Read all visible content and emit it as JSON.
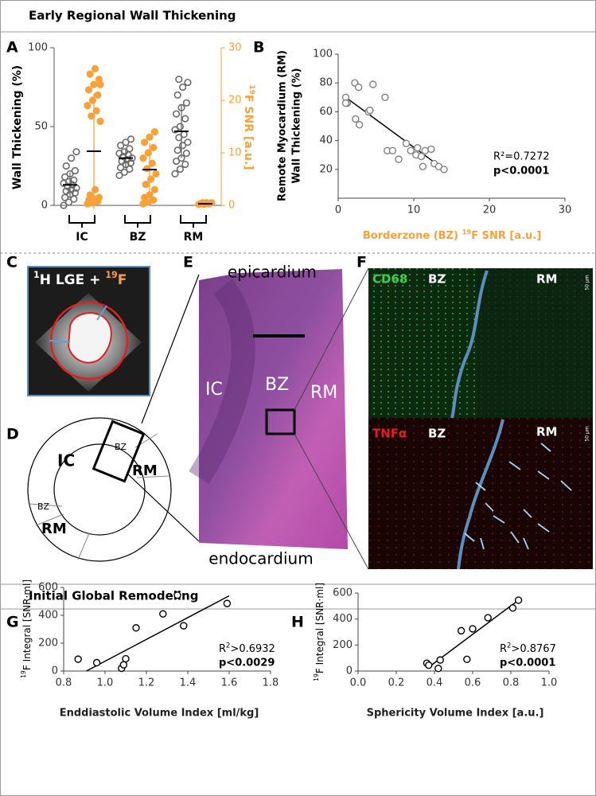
{
  "sections": [
    "Early Regional Wall Thickening",
    "Initial Global Remodeling"
  ],
  "panel_letters": [
    "A",
    "B",
    "C",
    "D",
    "E",
    "F",
    "G",
    "H"
  ],
  "image_c": {
    "label": [
      "1",
      "H LGE + ",
      "19",
      "F"
    ]
  },
  "diagram_d": {
    "labels": [
      "IC",
      "BZ",
      "RM",
      "BZ",
      "RM"
    ]
  },
  "histology_e": {
    "top": "epicardium",
    "bottom": "endocardium",
    "regions": [
      "IC",
      "BZ",
      "RM"
    ]
  },
  "stains_f": {
    "top": {
      "stain": "CD68",
      "left": "BZ",
      "right": "RM",
      "scale": "50 µm"
    },
    "bottom": {
      "stain": "TNFα",
      "left": "BZ",
      "right": "RM",
      "scale": "50 µm"
    }
  },
  "chart_data": [
    {
      "type": "strip",
      "categories": [
        "IC",
        "BZ",
        "RM"
      ],
      "ylabel": "Wall Thickening (%)",
      "y2label": [
        "19",
        "F SNR [a.u.]"
      ],
      "ylim": [
        0,
        100
      ],
      "yticks": [
        0,
        50,
        100
      ],
      "y2lim": [
        0,
        30
      ],
      "y2ticks": [
        0,
        10,
        20,
        30
      ],
      "series": [
        {
          "color": "#6b6b6b",
          "values": [
            [
              0,
              2,
              4,
              5,
              7,
              8,
              9,
              10,
              11,
              12,
              13,
              14,
              15,
              16,
              18,
              20,
              22,
              25,
              30,
              34
            ],
            [
              19,
              21,
              23,
              24,
              26,
              27,
              28,
              29,
              30,
              31,
              32,
              33,
              34,
              36,
              38,
              40,
              42
            ],
            [
              20,
              23,
              26,
              28,
              30,
              33,
              35,
              38,
              40,
              43,
              45,
              48,
              50,
              55,
              58,
              62,
              65,
              70,
              75,
              78,
              80
            ]
          ],
          "means": [
            13,
            30,
            47
          ],
          "sd": [
            8,
            6,
            17
          ]
        },
        {
          "color": "#f7a13a",
          "axis": "y2",
          "values": [
            [
              0.3,
              0.5,
              0.8,
              1,
              1.2,
              1.5,
              2,
              3,
              16,
              17,
              18,
              19,
              20,
              21,
              22,
              23,
              24,
              25,
              26,
              23
            ],
            [
              0.3,
              0.6,
              1,
              1.5,
              2,
              3,
              4,
              5,
              6,
              7,
              8,
              9,
              10,
              11,
              12,
              13,
              14
            ],
            [
              0.2,
              0.2,
              0.3,
              0.3,
              0.3,
              0.4,
              0.4,
              0.5,
              0.5,
              0.5
            ]
          ],
          "means": [
            10.3,
            6.8,
            0.3
          ],
          "sd": [
            11,
            5,
            0.2
          ]
        }
      ]
    },
    {
      "type": "scatter",
      "ylabel_lines": [
        "Remote Myocardium (RM)",
        "Wall Thickening (%)"
      ],
      "xlabel": [
        "Borderzone (BZ) ",
        "19",
        "F SNR  [a.u.]"
      ],
      "x": [
        1,
        1.2,
        1,
        2.2,
        2.3,
        2.8,
        2.7,
        4,
        4.6,
        4.2,
        6.2,
        6.5,
        7.2,
        8,
        9,
        9.6,
        10.3,
        10.5,
        11,
        11.2,
        11.5,
        12.3,
        12.7,
        13.3,
        14
      ],
      "values": [
        70,
        66,
        66,
        80,
        55,
        51,
        77,
        60,
        79,
        61,
        70,
        33,
        33,
        27,
        38,
        33,
        30,
        35,
        29,
        22,
        33,
        34,
        24,
        22,
        20
      ],
      "color": "#808080",
      "xlim": [
        0,
        30
      ],
      "xticks": [
        0,
        10,
        20,
        30
      ],
      "ylim": [
        0,
        100
      ],
      "yticks": [
        20,
        40,
        60,
        80,
        100
      ],
      "trendline": {
        "x": [
          1,
          14
        ],
        "y": [
          70,
          20
        ]
      },
      "annotations": [
        "R²=0.7272",
        "p<0.0001"
      ]
    },
    {
      "type": "scatter",
      "ylabel": [
        "19",
        "F Integral [SNR·ml]"
      ],
      "xlabel": "Enddiastolic  Volume Index [ml/kg]",
      "x": [
        0.87,
        0.96,
        1.08,
        1.09,
        1.1,
        1.15,
        1.28,
        1.35,
        1.38,
        1.59
      ],
      "values": [
        85,
        60,
        20,
        45,
        88,
        310,
        410,
        545,
        325,
        485
      ],
      "color": "#000000",
      "xlim": [
        0.8,
        1.8
      ],
      "xticks": [
        0.8,
        {
          "value": 1,
          "label": "1.0"
        },
        1.2,
        1.4,
        1.6,
        1.8
      ],
      "ylim": [
        0,
        600
      ],
      "yticks": [
        0,
        200,
        400,
        600
      ],
      "trendline": {
        "x": [
          0.91,
          1.6
        ],
        "y": [
          0,
          540
        ]
      },
      "annotations": [
        [
          "R",
          "2",
          ">0.6932"
        ],
        "p<0.0029"
      ]
    },
    {
      "type": "scatter",
      "ylabel": [
        "19",
        "F Integral [SNR·ml]"
      ],
      "xlabel": "Sphericity Volume Index [a.u.]",
      "x": [
        0.36,
        0.37,
        0.42,
        0.43,
        0.54,
        0.57,
        0.6,
        0.68,
        0.81,
        0.84
      ],
      "values": [
        60,
        45,
        20,
        85,
        310,
        90,
        325,
        410,
        485,
        545
      ],
      "color": "#000000",
      "xlim": [
        0,
        1
      ],
      "xticks": [
        {
          "value": 0,
          "label": "0.0"
        },
        0.2,
        0.4,
        0.6,
        0.8,
        {
          "value": 1,
          "label": "1.0"
        }
      ],
      "ylim": [
        0,
        600
      ],
      "yticks": [
        0,
        200,
        400,
        600
      ],
      "trendline": {
        "x": [
          0.37,
          0.84
        ],
        "y": [
          30,
          545
        ]
      },
      "annotations": [
        [
          "R",
          "2",
          ">0.8767"
        ],
        "p<0.0001"
      ]
    }
  ]
}
